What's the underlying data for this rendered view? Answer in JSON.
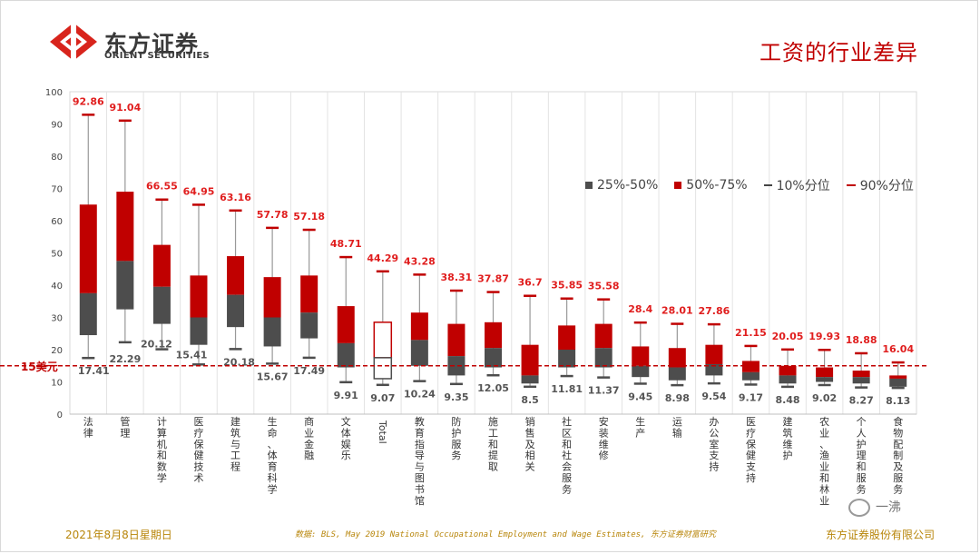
{
  "header": {
    "logo_cn": "东方证券",
    "logo_en": "ORIENT SECURITIES",
    "title": "工资的行业差异"
  },
  "footer": {
    "date": "2021年8月8日星期日",
    "source": "数据: BLS, May 2019 National Occupational Employment and Wage Estimates, 东方证券财富研究",
    "company": "东方证券股份有限公司",
    "watermark": "一沸"
  },
  "colors": {
    "box_low": "#4d4d4d",
    "box_high": "#c00000",
    "total_outline": "#c00000",
    "whisker": "#999999",
    "label_red": "#e01e1e",
    "label_gray": "#555555",
    "reference_line": "#c00000"
  },
  "chart_data": {
    "type": "boxplot",
    "title": "工资的行业差异",
    "ylim": [
      0,
      100
    ],
    "yticks": [
      0,
      10,
      20,
      30,
      40,
      50,
      60,
      70,
      80,
      90,
      100
    ],
    "reference_line": {
      "value": 15,
      "label": "15美元"
    },
    "legend": [
      "25%-50%",
      "50%-75%",
      "10%分位",
      "90%分位"
    ],
    "categories": [
      "法律",
      "管理",
      "计算机和数学",
      "医疗保健技术",
      "建筑与工程",
      "生命、体育科学",
      "商业金融",
      "文体娱乐",
      "Total",
      "教育指导与图书馆",
      "防护服务",
      "施工和提取",
      "销售及相关",
      "社区和社会服务",
      "安装维修",
      "生产",
      "运输",
      "办公室支持",
      "医疗保健支持",
      "建筑维护",
      "农业、渔业和林业",
      "个人护理和服务",
      "食物配制及服务"
    ],
    "p10": [
      17.41,
      22.29,
      20.12,
      15.41,
      20.18,
      15.67,
      17.49,
      9.91,
      9.07,
      10.24,
      9.35,
      12.05,
      8.5,
      11.81,
      11.37,
      9.45,
      8.98,
      9.54,
      9.17,
      8.48,
      9.02,
      8.27,
      8.13
    ],
    "p25": [
      24.5,
      32.5,
      28,
      21.5,
      27,
      21,
      23.5,
      14.5,
      11,
      15,
      12,
      14.5,
      9.5,
      14.5,
      14.5,
      11.5,
      10.5,
      12,
      10.5,
      9.5,
      10,
      9.5,
      8.5
    ],
    "p50": [
      37.5,
      47.5,
      39.5,
      30,
      37,
      30,
      31.5,
      22,
      17.5,
      23,
      18,
      20.5,
      12,
      20,
      20.5,
      15,
      14.5,
      15.5,
      13,
      12,
      11.5,
      11.5,
      11
    ],
    "p75": [
      65,
      69,
      52.5,
      43,
      49,
      42.5,
      43,
      33.5,
      28.5,
      31.5,
      28,
      28.5,
      21.5,
      27.5,
      28,
      21,
      20.5,
      21.5,
      16.5,
      15,
      14.5,
      13.5,
      12
    ],
    "p90": [
      92.86,
      91.04,
      66.55,
      64.95,
      63.16,
      57.78,
      57.18,
      48.71,
      44.29,
      43.28,
      38.31,
      37.87,
      36.7,
      35.85,
      35.58,
      28.4,
      28.01,
      27.86,
      21.15,
      20.05,
      19.93,
      18.88,
      16.04
    ]
  }
}
